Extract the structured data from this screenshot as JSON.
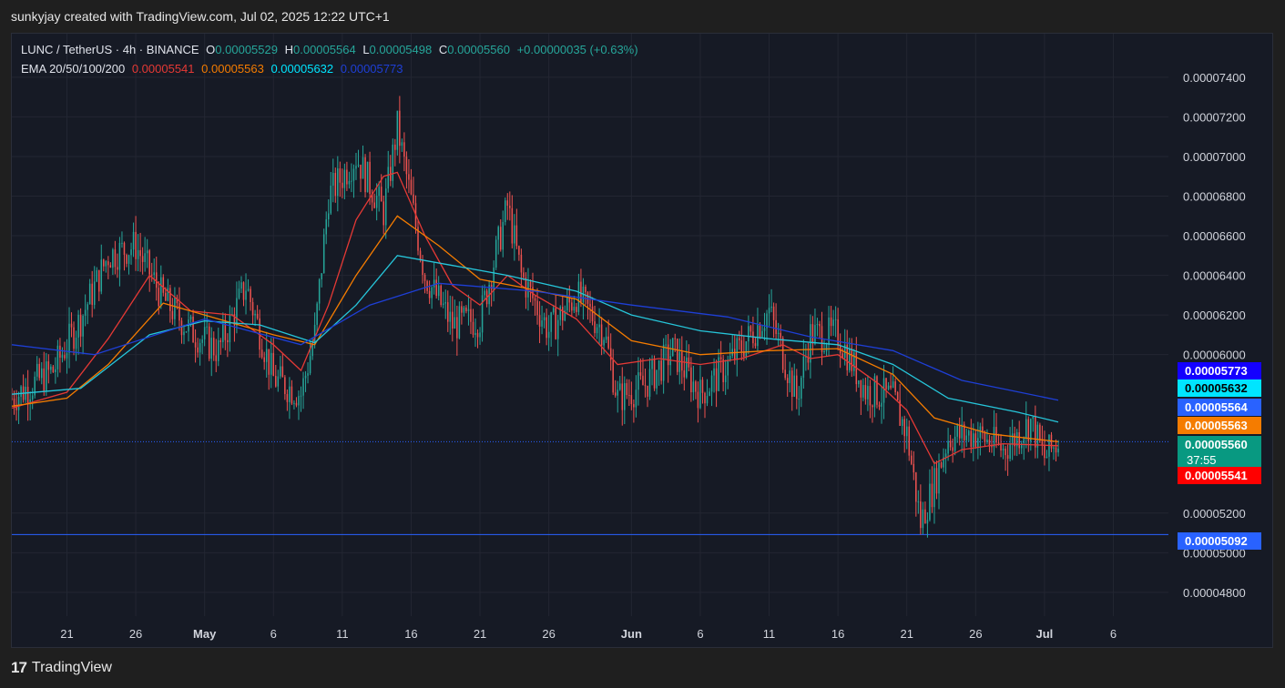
{
  "header": {
    "text": "sunkyjay created with TradingView.com, Jul 02, 2025 12:22 UTC+1"
  },
  "legend": {
    "symbol": "LUNC / TetherUS · 4h · BINANCE",
    "o_label": "O",
    "o_value": "0.00005529",
    "h_label": "H",
    "h_value": "0.00005564",
    "l_label": "L",
    "l_value": "0.00005498",
    "c_label": "C",
    "c_value": "0.00005560",
    "change": "+0.00000035 (+0.63%)",
    "ema_label": "EMA 20/50/100/200",
    "ema20": "0.00005541",
    "ema50": "0.00005563",
    "ema100": "0.00005632",
    "ema200": "0.00005773"
  },
  "footer": {
    "logo": "17",
    "brand": "TradingView"
  },
  "colors": {
    "background": "#161a25",
    "up": "#26a69a",
    "down": "#ef5350",
    "ema20": "#e53935",
    "ema50": "#f57c00",
    "ema100": "#26c6da",
    "ema200": "#1e3fd6",
    "priceline": "#2962ff"
  },
  "chart_data": {
    "type": "candlestick",
    "title": "LUNC / TetherUS · 4h · BINANCE",
    "y_axis": {
      "ticks": [
        "0.00007400",
        "0.00007200",
        "0.00007000",
        "0.00006800",
        "0.00006600",
        "0.00006400",
        "0.00006200",
        "0.00006000",
        "0.00005200",
        "0.00005000",
        "0.00004800"
      ],
      "range": [
        4.68e-05,
        7.62e-05
      ]
    },
    "x_axis": {
      "ticks": [
        "21",
        "26",
        "May",
        "6",
        "11",
        "16",
        "21",
        "26",
        "Jun",
        "6",
        "11",
        "16",
        "21",
        "26",
        "Jul",
        "6"
      ],
      "tick_dates": [
        "2025-04-21",
        "2025-04-26",
        "2025-05-01",
        "2025-05-06",
        "2025-05-11",
        "2025-05-16",
        "2025-05-21",
        "2025-05-26",
        "2025-06-01",
        "2025-06-06",
        "2025-06-11",
        "2025-06-16",
        "2025-06-21",
        "2025-06-26",
        "2025-07-01",
        "2025-07-06"
      ],
      "range": [
        "2025-04-17",
        "2025-07-10"
      ]
    },
    "price_close_series": [
      {
        "date": "2025-04-17",
        "value": 5.78e-05
      },
      {
        "date": "2025-04-20",
        "value": 5.92e-05
      },
      {
        "date": "2025-04-22",
        "value": 6.18e-05
      },
      {
        "date": "2025-04-24",
        "value": 6.5e-05
      },
      {
        "date": "2025-04-26",
        "value": 6.55e-05
      },
      {
        "date": "2025-04-28",
        "value": 6.28e-05
      },
      {
        "date": "2025-04-30",
        "value": 6.12e-05
      },
      {
        "date": "2025-05-02",
        "value": 6.02e-05
      },
      {
        "date": "2025-05-04",
        "value": 6.35e-05
      },
      {
        "date": "2025-05-06",
        "value": 5.88e-05
      },
      {
        "date": "2025-05-08",
        "value": 5.8e-05
      },
      {
        "date": "2025-05-09",
        "value": 6.1e-05
      },
      {
        "date": "2025-05-10",
        "value": 6.8e-05
      },
      {
        "date": "2025-05-12",
        "value": 7e-05
      },
      {
        "date": "2025-05-14",
        "value": 6.72e-05
      },
      {
        "date": "2025-05-15",
        "value": 7.15e-05
      },
      {
        "date": "2025-05-17",
        "value": 6.4e-05
      },
      {
        "date": "2025-05-19",
        "value": 6.15e-05
      },
      {
        "date": "2025-05-21",
        "value": 6.18e-05
      },
      {
        "date": "2025-05-23",
        "value": 6.75e-05
      },
      {
        "date": "2025-05-24",
        "value": 6.4e-05
      },
      {
        "date": "2025-05-26",
        "value": 6.12e-05
      },
      {
        "date": "2025-05-28",
        "value": 6.3e-05
      },
      {
        "date": "2025-05-30",
        "value": 6.12e-05
      },
      {
        "date": "2025-05-31",
        "value": 5.78e-05
      },
      {
        "date": "2025-06-02",
        "value": 5.85e-05
      },
      {
        "date": "2025-06-04",
        "value": 6.02e-05
      },
      {
        "date": "2025-06-06",
        "value": 5.8e-05
      },
      {
        "date": "2025-06-08",
        "value": 5.95e-05
      },
      {
        "date": "2025-06-11",
        "value": 6.22e-05
      },
      {
        "date": "2025-06-13",
        "value": 5.78e-05
      },
      {
        "date": "2025-06-14",
        "value": 6.1e-05
      },
      {
        "date": "2025-06-16",
        "value": 6.1e-05
      },
      {
        "date": "2025-06-18",
        "value": 5.82e-05
      },
      {
        "date": "2025-06-20",
        "value": 5.78e-05
      },
      {
        "date": "2025-06-21",
        "value": 5.6e-05
      },
      {
        "date": "2025-06-22",
        "value": 5.15e-05
      },
      {
        "date": "2025-06-23",
        "value": 5.35e-05
      },
      {
        "date": "2025-06-24",
        "value": 5.58e-05
      },
      {
        "date": "2025-06-26",
        "value": 5.6e-05
      },
      {
        "date": "2025-06-28",
        "value": 5.52e-05
      },
      {
        "date": "2025-06-30",
        "value": 5.66e-05
      },
      {
        "date": "2025-07-01",
        "value": 5.48e-05
      },
      {
        "date": "2025-07-02",
        "value": 5.56e-05
      }
    ],
    "series": [
      {
        "name": "EMA 20",
        "color": "#e53935",
        "points": [
          {
            "date": "2025-04-17",
            "value": 5.73e-05
          },
          {
            "date": "2025-04-21",
            "value": 5.81e-05
          },
          {
            "date": "2025-04-24",
            "value": 6.08e-05
          },
          {
            "date": "2025-04-27",
            "value": 6.4e-05
          },
          {
            "date": "2025-04-30",
            "value": 6.22e-05
          },
          {
            "date": "2025-05-03",
            "value": 6.2e-05
          },
          {
            "date": "2025-05-06",
            "value": 6.05e-05
          },
          {
            "date": "2025-05-08",
            "value": 5.92e-05
          },
          {
            "date": "2025-05-10",
            "value": 6.25e-05
          },
          {
            "date": "2025-05-12",
            "value": 6.68e-05
          },
          {
            "date": "2025-05-14",
            "value": 6.9e-05
          },
          {
            "date": "2025-05-15",
            "value": 6.92e-05
          },
          {
            "date": "2025-05-17",
            "value": 6.6e-05
          },
          {
            "date": "2025-05-19",
            "value": 6.35e-05
          },
          {
            "date": "2025-05-21",
            "value": 6.25e-05
          },
          {
            "date": "2025-05-23",
            "value": 6.4e-05
          },
          {
            "date": "2025-05-25",
            "value": 6.3e-05
          },
          {
            "date": "2025-05-28",
            "value": 6.18e-05
          },
          {
            "date": "2025-05-31",
            "value": 5.95e-05
          },
          {
            "date": "2025-06-03",
            "value": 5.98e-05
          },
          {
            "date": "2025-06-06",
            "value": 5.95e-05
          },
          {
            "date": "2025-06-09",
            "value": 5.98e-05
          },
          {
            "date": "2025-06-12",
            "value": 6.05e-05
          },
          {
            "date": "2025-06-14",
            "value": 5.98e-05
          },
          {
            "date": "2025-06-16",
            "value": 6e-05
          },
          {
            "date": "2025-06-19",
            "value": 5.85e-05
          },
          {
            "date": "2025-06-21",
            "value": 5.72e-05
          },
          {
            "date": "2025-06-23",
            "value": 5.45e-05
          },
          {
            "date": "2025-06-25",
            "value": 5.52e-05
          },
          {
            "date": "2025-06-28",
            "value": 5.55e-05
          },
          {
            "date": "2025-07-02",
            "value": 5.54e-05
          }
        ]
      },
      {
        "name": "EMA 50",
        "color": "#f57c00",
        "points": [
          {
            "date": "2025-04-17",
            "value": 5.74e-05
          },
          {
            "date": "2025-04-21",
            "value": 5.78e-05
          },
          {
            "date": "2025-04-24",
            "value": 5.95e-05
          },
          {
            "date": "2025-04-28",
            "value": 6.26e-05
          },
          {
            "date": "2025-05-02",
            "value": 6.18e-05
          },
          {
            "date": "2025-05-06",
            "value": 6.1e-05
          },
          {
            "date": "2025-05-09",
            "value": 6.05e-05
          },
          {
            "date": "2025-05-12",
            "value": 6.4e-05
          },
          {
            "date": "2025-05-15",
            "value": 6.7e-05
          },
          {
            "date": "2025-05-18",
            "value": 6.55e-05
          },
          {
            "date": "2025-05-21",
            "value": 6.38e-05
          },
          {
            "date": "2025-05-24",
            "value": 6.34e-05
          },
          {
            "date": "2025-05-28",
            "value": 6.28e-05
          },
          {
            "date": "2025-06-01",
            "value": 6.07e-05
          },
          {
            "date": "2025-06-06",
            "value": 6e-05
          },
          {
            "date": "2025-06-11",
            "value": 6.02e-05
          },
          {
            "date": "2025-06-16",
            "value": 6.03e-05
          },
          {
            "date": "2025-06-20",
            "value": 5.9e-05
          },
          {
            "date": "2025-06-23",
            "value": 5.68e-05
          },
          {
            "date": "2025-06-27",
            "value": 5.6e-05
          },
          {
            "date": "2025-07-02",
            "value": 5.56e-05
          }
        ]
      },
      {
        "name": "EMA 100",
        "color": "#26c6da",
        "points": [
          {
            "date": "2025-04-17",
            "value": 5.8e-05
          },
          {
            "date": "2025-04-22",
            "value": 5.83e-05
          },
          {
            "date": "2025-04-27",
            "value": 6.1e-05
          },
          {
            "date": "2025-05-01",
            "value": 6.17e-05
          },
          {
            "date": "2025-05-05",
            "value": 6.15e-05
          },
          {
            "date": "2025-05-09",
            "value": 6.06e-05
          },
          {
            "date": "2025-05-12",
            "value": 6.25e-05
          },
          {
            "date": "2025-05-15",
            "value": 6.5e-05
          },
          {
            "date": "2025-05-19",
            "value": 6.45e-05
          },
          {
            "date": "2025-05-23",
            "value": 6.4e-05
          },
          {
            "date": "2025-05-28",
            "value": 6.32e-05
          },
          {
            "date": "2025-06-01",
            "value": 6.2e-05
          },
          {
            "date": "2025-06-06",
            "value": 6.12e-05
          },
          {
            "date": "2025-06-11",
            "value": 6.08e-05
          },
          {
            "date": "2025-06-16",
            "value": 6.05e-05
          },
          {
            "date": "2025-06-20",
            "value": 5.95e-05
          },
          {
            "date": "2025-06-24",
            "value": 5.78e-05
          },
          {
            "date": "2025-06-29",
            "value": 5.71e-05
          },
          {
            "date": "2025-07-02",
            "value": 5.66e-05
          }
        ]
      },
      {
        "name": "EMA 200",
        "color": "#1e3fd6",
        "points": [
          {
            "date": "2025-04-17",
            "value": 6.05e-05
          },
          {
            "date": "2025-04-23",
            "value": 6e-05
          },
          {
            "date": "2025-05-01",
            "value": 6.18e-05
          },
          {
            "date": "2025-05-08",
            "value": 6.05e-05
          },
          {
            "date": "2025-05-13",
            "value": 6.25e-05
          },
          {
            "date": "2025-05-18",
            "value": 6.36e-05
          },
          {
            "date": "2025-05-25",
            "value": 6.32e-05
          },
          {
            "date": "2025-06-01",
            "value": 6.25e-05
          },
          {
            "date": "2025-06-08",
            "value": 6.19e-05
          },
          {
            "date": "2025-06-14",
            "value": 6.09e-05
          },
          {
            "date": "2025-06-20",
            "value": 6.02e-05
          },
          {
            "date": "2025-06-25",
            "value": 5.87e-05
          },
          {
            "date": "2025-07-02",
            "value": 5.77e-05
          }
        ]
      }
    ],
    "price_lines": [
      {
        "label": "0.00005773",
        "value": 5.773e-05,
        "bg": "#1400ff",
        "fg": "#ffffff"
      },
      {
        "label": "0.00005632",
        "value": 5.632e-05,
        "bg": "#00e5ff",
        "fg": "#000000"
      },
      {
        "label": "0.00005564",
        "value": 5.564e-05,
        "bg": "#2962ff",
        "fg": "#ffffff"
      },
      {
        "label": "0.00005563",
        "value": 5.563e-05,
        "bg": "#f57c00",
        "fg": "#ffffff"
      },
      {
        "label": "0.00005560",
        "value": 5.56e-05,
        "bg": "#089981",
        "fg": "#ffffff",
        "countdown": "37:55"
      },
      {
        "label": "0.00005541",
        "value": 5.541e-05,
        "bg": "#ff0000",
        "fg": "#ffffff"
      },
      {
        "label": "0.00005092",
        "value": 5.092e-05,
        "bg": "#2962ff",
        "fg": "#ffffff"
      }
    ],
    "horizontal_lines": [
      {
        "value": 5.56e-05,
        "style": "dotted",
        "color": "#2962ff"
      },
      {
        "value": 5.092e-05,
        "style": "solid",
        "color": "#2962ff"
      }
    ]
  }
}
